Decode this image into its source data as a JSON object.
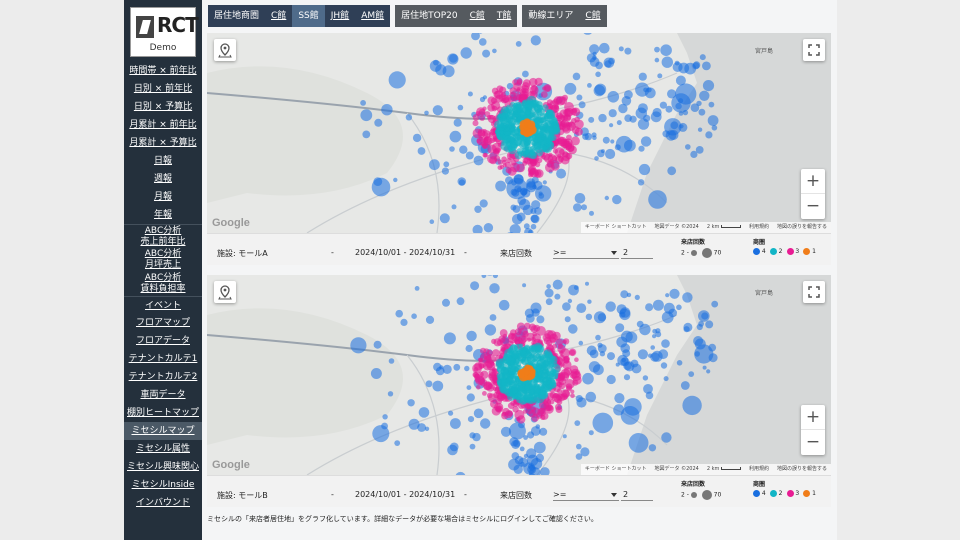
{
  "logo": {
    "brand": "RCT",
    "sub": "Demo"
  },
  "nav": [
    {
      "label": "時間帯 × 前年比",
      "lines": [
        "時間帯 × 前年比"
      ]
    },
    {
      "label": "日別 × 前年比",
      "lines": [
        "日別 × 前年比"
      ]
    },
    {
      "label": "日別 × 予算比",
      "lines": [
        "日別 × 予算比"
      ]
    },
    {
      "label": "月累計 × 前年比",
      "lines": [
        "月累計 × 前年比"
      ]
    },
    {
      "label": "月累計 × 予算比",
      "lines": [
        "月累計 × 予算比"
      ]
    },
    {
      "label": "日報",
      "lines": [
        "日報"
      ]
    },
    {
      "label": "週報",
      "lines": [
        "週報"
      ]
    },
    {
      "label": "月報",
      "lines": [
        "月報"
      ]
    },
    {
      "label": "年報",
      "lines": [
        "年報"
      ]
    },
    {
      "label": "ABC分析 売上前年比",
      "lines": [
        "ABC分析",
        "売上前年比"
      ]
    },
    {
      "label": "ABC分析 月坪売上",
      "lines": [
        "ABC分析",
        "月坪売上"
      ]
    },
    {
      "label": "ABC分析 賃料負担率",
      "lines": [
        "ABC分析",
        "賃料負担率"
      ]
    },
    {
      "label": "イベント",
      "lines": [
        "イベント"
      ]
    },
    {
      "label": "フロアマップ",
      "lines": [
        "フロアマップ"
      ]
    },
    {
      "label": "フロアデータ",
      "lines": [
        "フロアデータ"
      ]
    },
    {
      "label": "テナントカルテ1",
      "lines": [
        "テナントカルテ1"
      ]
    },
    {
      "label": "テナントカルテ2",
      "lines": [
        "テナントカルテ2"
      ]
    },
    {
      "label": "車両データ",
      "lines": [
        "車両データ"
      ]
    },
    {
      "label": "棚別ヒートマップ",
      "lines": [
        "棚別ヒートマップ"
      ]
    },
    {
      "label": "ミセシルマップ",
      "lines": [
        "ミセシルマップ"
      ],
      "active": true
    },
    {
      "label": "ミセシル属性",
      "lines": [
        "ミセシル属性"
      ]
    },
    {
      "label": "ミセシル興味関心",
      "lines": [
        "ミセシル興味関心"
      ]
    },
    {
      "label": "ミセシルInside",
      "lines": [
        "ミセシルInside"
      ]
    },
    {
      "label": "インバウンド",
      "lines": [
        "インバウンド"
      ]
    }
  ],
  "tab_groups": [
    {
      "tabs": [
        {
          "label": "居住地商圏"
        },
        {
          "label": "C館",
          "ul": true
        },
        {
          "label": "SS館",
          "active": true
        },
        {
          "label": "JH館",
          "ul": true
        },
        {
          "label": "AM館",
          "ul": true
        }
      ]
    },
    {
      "tabs": [
        {
          "label": "居住地TOP20"
        },
        {
          "label": "C館",
          "ul": true
        },
        {
          "label": "T館",
          "ul": true
        }
      ]
    },
    {
      "tabs": [
        {
          "label": "動線エリア"
        },
        {
          "label": "C館",
          "ul": true
        }
      ]
    }
  ],
  "maps": [
    {
      "place_label": "宮戸島",
      "google": "Google",
      "attribution": [
        "キーボード ショートカット",
        "地図データ ©2024",
        "2 km",
        "利用規約",
        "地図の誤りを報告する"
      ],
      "facility_label": "施設:",
      "facility": "モールA",
      "dash1": "-",
      "date_range": "2024/10/01 - 2024/10/31",
      "dash2": "-",
      "visit_label": "来店回数",
      "operator": ">=",
      "count": "2",
      "legend_size_title": "来店回数",
      "legend_size_min": "2",
      "legend_size_max": "70",
      "legend_color_title": "商圏",
      "legend_color": [
        {
          "label": "4",
          "color": "#1a6fe0"
        },
        {
          "label": "2",
          "color": "#12b5c6"
        },
        {
          "label": "3",
          "color": "#e81c93"
        },
        {
          "label": "1",
          "color": "#f07d1a"
        }
      ]
    },
    {
      "place_label": "宮戸島",
      "google": "Google",
      "attribution": [
        "キーボード ショートカット",
        "地図データ ©2024",
        "2 km",
        "利用規約",
        "地図の誤りを報告する"
      ],
      "facility_label": "施設:",
      "facility": "モールB",
      "dash1": "-",
      "date_range": "2024/10/01 - 2024/10/31",
      "dash2": "-",
      "visit_label": "来店回数",
      "operator": ">=",
      "count": "2",
      "legend_size_title": "来店回数",
      "legend_size_min": "2",
      "legend_size_max": "70",
      "legend_color_title": "商圏",
      "legend_color": [
        {
          "label": "4",
          "color": "#1a6fe0"
        },
        {
          "label": "2",
          "color": "#12b5c6"
        },
        {
          "label": "3",
          "color": "#e81c93"
        },
        {
          "label": "1",
          "color": "#f07d1a"
        }
      ]
    }
  ],
  "zoom_in": "+",
  "zoom_out": "−",
  "footer": "ミセシルの「来店者居住地」をグラフ化しています。詳細なデータが必要な場合はミセシルにログインしてご確認ください。"
}
